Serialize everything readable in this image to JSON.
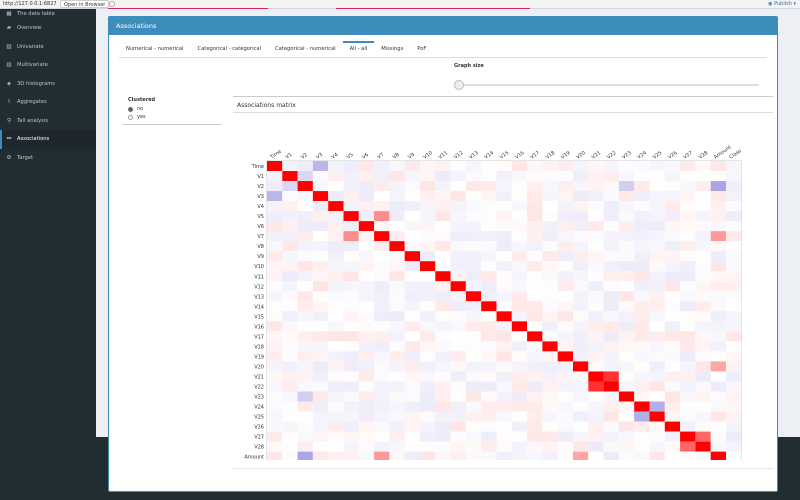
{
  "browser": {
    "url": "http://127.0.0.1:6827",
    "open_label": "Open in Browser",
    "publish_label": "Publish"
  },
  "sidebar": {
    "items": [
      {
        "label": "The data table",
        "icon": "table-icon",
        "glyph": "▦"
      },
      {
        "label": "Overview",
        "icon": "car-icon",
        "glyph": "▰"
      },
      {
        "label": "Univariate",
        "icon": "chart-icon",
        "glyph": "▥"
      },
      {
        "label": "Multivariate",
        "icon": "chart-icon",
        "glyph": "▥"
      },
      {
        "label": "3D histograms",
        "icon": "cube-icon",
        "glyph": "◈"
      },
      {
        "label": "Aggregates",
        "icon": "line-chart-icon",
        "glyph": "⌇"
      },
      {
        "label": "Tail analysis",
        "icon": "search-icon",
        "glyph": "⚲"
      },
      {
        "label": "Associations",
        "icon": "link-icon",
        "glyph": "⚯"
      },
      {
        "label": "Target",
        "icon": "gear-icon",
        "glyph": "⚙"
      }
    ],
    "active_index": 7
  },
  "panel": {
    "title": "Associations",
    "tabs": [
      "Numerical - numerical",
      "Categorical - categorical",
      "Categorical - numerical",
      "All - all",
      "Missings",
      "PoF"
    ],
    "active_tab": 3,
    "graph_size_label": "Graph size",
    "slider_value": 0
  },
  "clustered": {
    "label": "Clustered",
    "options": [
      "no",
      "yes"
    ],
    "selected": "no"
  },
  "colors": {
    "accent": "#3c8dbc",
    "sidebar_bg": "#222d32",
    "positive": "#ff0000",
    "negative": "#6a5acd"
  },
  "chart_data": {
    "type": "heatmap",
    "title": "Associations matrix",
    "xlabel": "",
    "ylabel": "",
    "labels": [
      "Time",
      "V1",
      "V2",
      "V3",
      "V4",
      "V5",
      "V6",
      "V7",
      "V8",
      "V9",
      "V10",
      "V11",
      "V12",
      "V13",
      "V14",
      "V15",
      "V16",
      "V17",
      "V18",
      "V19",
      "V20",
      "V21",
      "V22",
      "V23",
      "V24",
      "V25",
      "V26",
      "V27",
      "V28",
      "Amount",
      "Class"
    ],
    "value_range": [
      -1,
      1
    ],
    "strong_off_diagonal": [
      {
        "row": "V21",
        "col": "V22",
        "value": 0.8
      },
      {
        "row": "V27",
        "col": "V28",
        "value": 0.6
      },
      {
        "row": "V3",
        "col": "Time",
        "value": -0.45
      },
      {
        "row": "V2",
        "col": "V1",
        "value": -0.25
      },
      {
        "row": "V23",
        "col": "V2",
        "value": -0.3
      },
      {
        "row": "V7",
        "col": "V5",
        "value": 0.45
      },
      {
        "row": "Amount",
        "col": "V2",
        "value": -0.55
      },
      {
        "row": "Amount",
        "col": "V7",
        "value": 0.4
      },
      {
        "row": "V25",
        "col": "V24",
        "value": -0.5
      },
      {
        "row": "V20",
        "col": "Amount",
        "value": 0.35
      }
    ]
  }
}
